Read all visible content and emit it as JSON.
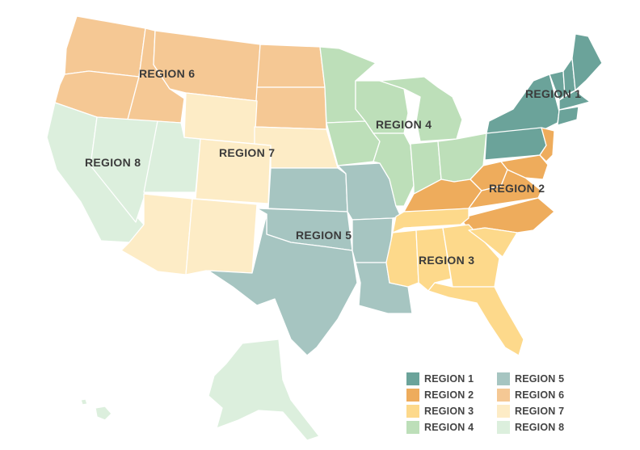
{
  "colors": {
    "region1": "#6ba39a",
    "region2": "#eeac5c",
    "region3": "#fdd98b",
    "region4": "#bddfb9",
    "region5": "#a6c5c1",
    "region6": "#f5c894",
    "region7": "#fdecc6",
    "region8": "#dcefdd"
  },
  "map": {
    "labels": {
      "region1": "REGION 1",
      "region2": "REGION 2",
      "region3": "REGION 3",
      "region4": "REGION 4",
      "region5": "REGION 5",
      "region6": "REGION 6",
      "region7": "REGION 7",
      "region8": "REGION 8"
    }
  },
  "legend": {
    "items": [
      {
        "label": "REGION 1",
        "region": "region1"
      },
      {
        "label": "REGION 2",
        "region": "region2"
      },
      {
        "label": "REGION 3",
        "region": "region3"
      },
      {
        "label": "REGION 4",
        "region": "region4"
      },
      {
        "label": "REGION 5",
        "region": "region5"
      },
      {
        "label": "REGION 6",
        "region": "region6"
      },
      {
        "label": "REGION 7",
        "region": "region7"
      },
      {
        "label": "REGION 8",
        "region": "region8"
      }
    ]
  }
}
